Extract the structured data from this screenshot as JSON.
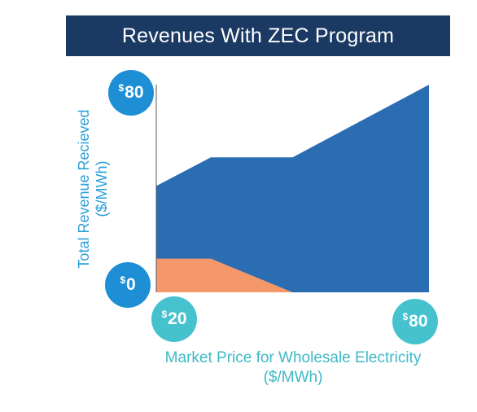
{
  "chart_data": {
    "type": "area",
    "title": "Revenues With ZEC Program",
    "xlabel": [
      "Market Price for Wholesale Electricity",
      "($/MWh)"
    ],
    "ylabel": [
      "Total Revenue Recieved",
      "($/MWh)"
    ],
    "xlim": [
      20,
      80
    ],
    "ylim": [
      0,
      80
    ],
    "x_ticks": [
      {
        "value": 20,
        "label": "20"
      },
      {
        "value": 80,
        "label": "80"
      }
    ],
    "y_ticks": [
      {
        "value": 0,
        "label": "0"
      },
      {
        "value": 80,
        "label": "80"
      }
    ],
    "currency_symbol": "$",
    "x": [
      20,
      32,
      50,
      80
    ],
    "series": [
      {
        "values": [
          41,
          52,
          52,
          80
        ],
        "color": "#2b6db3"
      },
      {
        "values": [
          13,
          13,
          0,
          0
        ],
        "color": "#f4986a"
      }
    ],
    "colors": {
      "tick_circle_y": "#1e8fd4",
      "tick_circle_x": "#46c2cf",
      "axis": "#555555",
      "title_bg": "#1b3a63"
    }
  }
}
